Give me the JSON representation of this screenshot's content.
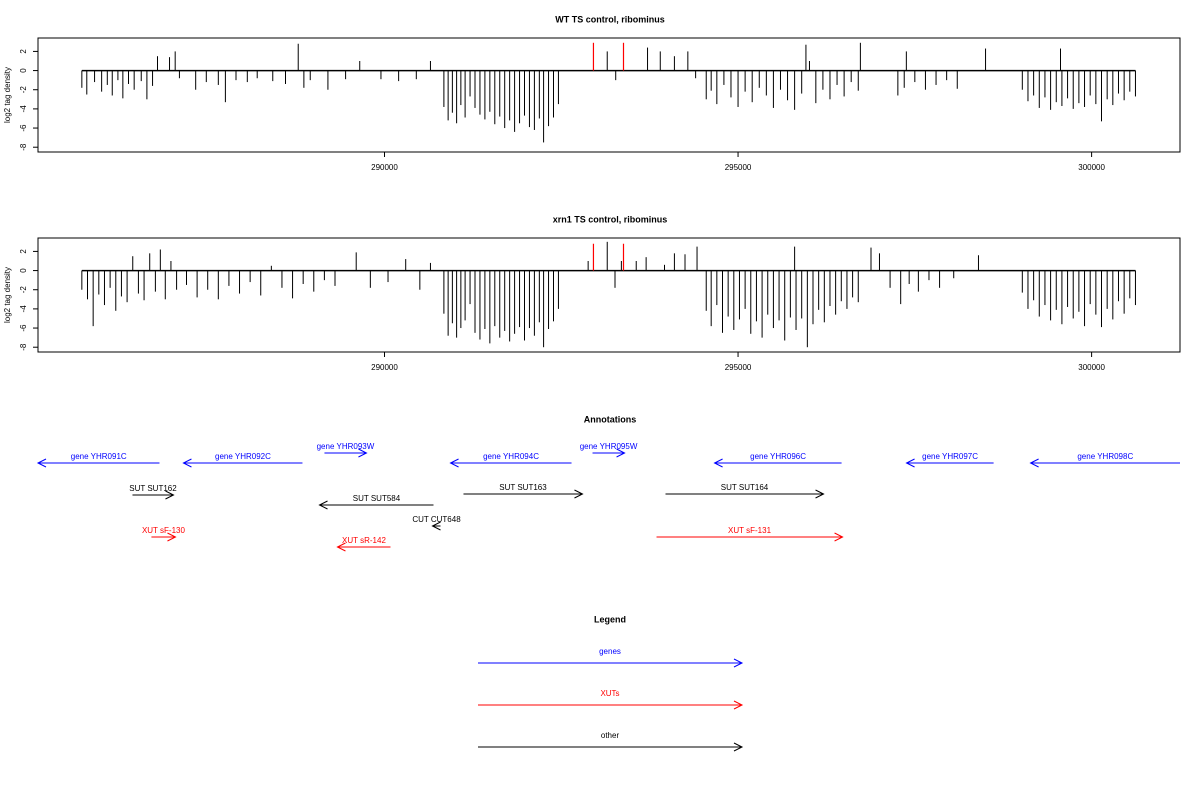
{
  "chart_data": [
    {
      "type": "spike",
      "title": "WT TS control, ribominus",
      "ylabel": "log2 tag density",
      "xlim": [
        285100,
        301250
      ],
      "xticks": [
        290000,
        295000,
        300000
      ],
      "ylim": [
        -8.5,
        3.4
      ],
      "yticks": [
        2,
        0,
        -2,
        -4,
        -6,
        -8
      ],
      "color": "#000000",
      "x": [
        285720,
        285790,
        285900,
        286000,
        286080,
        286150,
        286230,
        286300,
        286380,
        286460,
        286560,
        286640,
        286720,
        286790,
        286960,
        287040,
        287100,
        287330,
        287480,
        287650,
        287750,
        287900,
        288060,
        288200,
        288420,
        288600,
        288780,
        288860,
        288950,
        289200,
        289450,
        289650,
        289950,
        290200,
        290450,
        290650,
        290840,
        290900,
        290960,
        291020,
        291080,
        291140,
        291210,
        291280,
        291350,
        291420,
        291490,
        291560,
        291630,
        291700,
        291770,
        291840,
        291910,
        291980,
        292050,
        292120,
        292190,
        292250,
        292320,
        292390,
        292460,
        293150,
        293270,
        293720,
        293900,
        294100,
        294290,
        294400,
        294550,
        294620,
        294700,
        294800,
        294900,
        295000,
        295100,
        295200,
        295300,
        295400,
        295500,
        295600,
        295700,
        295800,
        295900,
        295960,
        296010,
        296100,
        296200,
        296300,
        296400,
        296500,
        296600,
        296700,
        296730,
        297260,
        297350,
        297380,
        297500,
        297650,
        297800,
        297950,
        298100,
        298500,
        299020,
        299100,
        299180,
        299260,
        299340,
        299420,
        299500,
        299560,
        299580,
        299660,
        299740,
        299820,
        299900,
        299980,
        300060,
        300140,
        300220,
        300300,
        300380,
        300460,
        300540,
        300620
      ],
      "values": [
        -1.8,
        -2.5,
        -1.2,
        -2.2,
        -1.5,
        -2.6,
        -1.0,
        -2.9,
        -1.4,
        -2.0,
        -1.1,
        -3.0,
        -1.6,
        1.5,
        1.4,
        2.0,
        -0.8,
        -2.0,
        -1.2,
        -1.5,
        -3.3,
        -1.0,
        -1.2,
        -0.8,
        -1.1,
        -1.4,
        2.8,
        -1.8,
        -1.0,
        -2.0,
        -0.9,
        1.0,
        -0.9,
        -1.1,
        -0.9,
        1.0,
        -3.8,
        -5.2,
        -4.4,
        -5.5,
        -3.6,
        -4.9,
        -2.7,
        -3.9,
        -4.6,
        -5.1,
        -4.3,
        -5.6,
        -4.8,
        -6.0,
        -5.2,
        -6.4,
        -5.5,
        -4.7,
        -5.9,
        -6.2,
        -5.0,
        -7.5,
        -5.8,
        -4.9,
        -3.5,
        2.0,
        -1.0,
        2.4,
        2.0,
        1.5,
        2.0,
        -0.8,
        -3.0,
        -2.1,
        -3.5,
        -1.5,
        -2.8,
        -3.8,
        -2.2,
        -3.3,
        -1.8,
        -2.6,
        -3.9,
        -2.0,
        -3.1,
        -4.1,
        -2.4,
        2.7,
        1.0,
        -3.4,
        -2.0,
        -3.0,
        -1.5,
        -2.7,
        -1.2,
        -2.1,
        2.9,
        -2.6,
        -1.8,
        2.0,
        -1.2,
        -2.0,
        -1.5,
        -1.0,
        -1.9,
        2.3,
        -2.0,
        -3.2,
        -2.6,
        -3.9,
        -2.8,
        -4.1,
        -3.3,
        2.3,
        -3.7,
        -2.9,
        -4.0,
        -3.4,
        -3.8,
        -2.6,
        -3.5,
        -5.3,
        -3.0,
        -3.6,
        -2.4,
        -3.1,
        -2.2,
        -2.7
      ],
      "highlights": {
        "x": [
          292955,
          293380
        ],
        "values": [
          2.9,
          2.9
        ],
        "color": "#ff0000"
      }
    },
    {
      "type": "spike",
      "title": "xrn1 TS control, ribominus",
      "ylabel": "log2 tag density",
      "xlim": [
        285100,
        301250
      ],
      "xticks": [
        290000,
        295000,
        300000
      ],
      "ylim": [
        -8.5,
        3.4
      ],
      "yticks": [
        2,
        0,
        -2,
        -4,
        -6,
        -8
      ],
      "color": "#000000",
      "x": [
        285720,
        285800,
        285880,
        285960,
        286040,
        286120,
        286200,
        286280,
        286360,
        286440,
        286520,
        286600,
        286680,
        286760,
        286830,
        286900,
        286980,
        287060,
        287200,
        287350,
        287500,
        287650,
        287800,
        287950,
        288100,
        288250,
        288400,
        288550,
        288700,
        288850,
        289000,
        289150,
        289300,
        289600,
        289800,
        290050,
        290300,
        290500,
        290650,
        290840,
        290900,
        290960,
        291020,
        291080,
        291140,
        291210,
        291280,
        291350,
        291420,
        291490,
        291560,
        291630,
        291700,
        291770,
        291840,
        291910,
        291980,
        292050,
        292120,
        292190,
        292250,
        292320,
        292390,
        292460,
        292880,
        293150,
        293260,
        293350,
        293560,
        293700,
        293960,
        294100,
        294250,
        294420,
        294550,
        294620,
        294700,
        294780,
        294860,
        294940,
        295020,
        295100,
        295180,
        295260,
        295340,
        295420,
        295500,
        295580,
        295660,
        295740,
        295800,
        295820,
        295900,
        295980,
        296060,
        296140,
        296220,
        296300,
        296380,
        296460,
        296540,
        296620,
        296700,
        296880,
        297000,
        297150,
        297300,
        297420,
        297550,
        297700,
        297850,
        298050,
        298400,
        299020,
        299100,
        299180,
        299260,
        299340,
        299420,
        299500,
        299580,
        299660,
        299740,
        299820,
        299900,
        299980,
        300060,
        300140,
        300220,
        300300,
        300380,
        300460,
        300540,
        300620
      ],
      "values": [
        -2.0,
        -3.0,
        -5.8,
        -2.5,
        -3.6,
        -1.8,
        -4.2,
        -2.7,
        -3.3,
        1.5,
        -2.4,
        -3.1,
        1.8,
        -2.2,
        2.2,
        -3.0,
        1.0,
        -2.0,
        -1.5,
        -2.8,
        -2.0,
        -3.0,
        -1.6,
        -2.4,
        -1.2,
        -2.6,
        0.5,
        -1.8,
        -2.9,
        -1.4,
        -2.2,
        -1.0,
        -1.6,
        1.9,
        -1.8,
        -1.2,
        1.2,
        -2.0,
        0.8,
        -4.5,
        -6.8,
        -5.5,
        -7.0,
        -6.0,
        -5.2,
        -3.5,
        -6.5,
        -7.2,
        -6.1,
        -7.6,
        -5.8,
        -7.0,
        -6.3,
        -7.4,
        -6.6,
        -5.9,
        -7.3,
        -6.0,
        -6.8,
        -5.4,
        -8.0,
        -6.1,
        -5.3,
        -4.0,
        1.0,
        3.0,
        -1.8,
        1.0,
        1.0,
        1.4,
        0.6,
        1.8,
        1.7,
        2.5,
        -4.2,
        -5.8,
        -3.6,
        -6.5,
        -4.8,
        -6.2,
        -5.1,
        -4.0,
        -6.6,
        -5.3,
        -7.0,
        -4.6,
        -6.0,
        -5.2,
        -7.3,
        -4.9,
        2.5,
        -6.2,
        -5.0,
        -8.0,
        -5.6,
        -4.1,
        -5.4,
        -3.7,
        -4.6,
        -3.2,
        -4.0,
        -2.8,
        -3.3,
        2.4,
        1.8,
        -1.8,
        -3.5,
        -1.4,
        -2.2,
        -1.0,
        -1.8,
        -0.8,
        1.6,
        -2.3,
        -4.0,
        -3.1,
        -4.8,
        -3.6,
        -5.2,
        -4.1,
        -5.6,
        -3.8,
        -5.0,
        -4.3,
        -5.8,
        -3.5,
        -4.6,
        -5.9,
        -4.0,
        -5.1,
        -3.2,
        -4.5,
        -2.9,
        -3.6
      ],
      "highlights": {
        "x": [
          292955,
          293380
        ],
        "values": [
          2.8,
          2.8
        ],
        "color": "#ff0000"
      }
    },
    {
      "type": "annotation",
      "title": "Annotations",
      "xlim": [
        285100,
        301250
      ],
      "features": [
        {
          "label": "gene YHR091C",
          "start": 286818,
          "end": 285100,
          "color": "#0000ff"
        },
        {
          "label": "gene YHR092C",
          "start": 288840,
          "end": 287157,
          "color": "#0000ff"
        },
        {
          "label": "gene YHR093W",
          "start": 289151,
          "end": 289745,
          "color": "#0000ff"
        },
        {
          "label": "gene YHR094C",
          "start": 292645,
          "end": 290934,
          "color": "#0000ff"
        },
        {
          "label": "gene YHR095W",
          "start": 292942,
          "end": 293395,
          "color": "#0000ff"
        },
        {
          "label": "gene YHR096C",
          "start": 296464,
          "end": 294668,
          "color": "#0000ff"
        },
        {
          "label": "gene YHR097C",
          "start": 298614,
          "end": 297383,
          "color": "#0000ff"
        },
        {
          "label": "gene YHR098C",
          "start": 301250,
          "end": 299137,
          "color": "#0000ff"
        },
        {
          "label": "SUT SUT162",
          "start": 286436,
          "end": 287016,
          "color": "#000000"
        },
        {
          "label": "SUT SUT584",
          "start": 290693,
          "end": 289081,
          "color": "#000000"
        },
        {
          "label": "SUT SUT163",
          "start": 291117,
          "end": 292800,
          "color": "#000000"
        },
        {
          "label": "SUT SUT164",
          "start": 293974,
          "end": 296209,
          "color": "#000000"
        },
        {
          "label": "CUT CUT648",
          "start": 290792,
          "end": 290679,
          "color": "#000000"
        },
        {
          "label": "XUT sF-130",
          "start": 286704,
          "end": 287044,
          "color": "#ff0000"
        },
        {
          "label": "XUT sR-142",
          "start": 290085,
          "end": 289335,
          "color": "#ff0000"
        },
        {
          "label": "XUT sF-131",
          "start": 293847,
          "end": 296478,
          "color": "#ff0000"
        }
      ],
      "legend": {
        "title": "Legend",
        "entries": [
          {
            "label": "genes",
            "color": "#0000ff"
          },
          {
            "label": "XUTs",
            "color": "#ff0000"
          },
          {
            "label": "other",
            "color": "#000000"
          }
        ]
      }
    }
  ]
}
